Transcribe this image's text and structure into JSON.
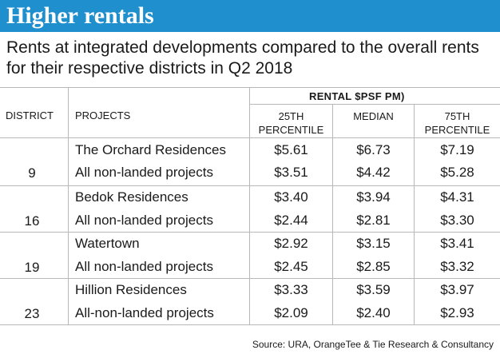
{
  "title": "Higher rentals",
  "subtitle": "Rents at integrated developments compared  to the overall rents for their respective districts in Q2 2018",
  "table": {
    "col_district": "DISTRICT",
    "col_projects": "PROJECTS",
    "rental_group": "RENTAL $PSF PM)",
    "col_25_line1": "25TH",
    "col_25_line2": "PERCENTILE",
    "col_median": "MEDIAN",
    "col_75_line1": "75TH",
    "col_75_line2": "PERCENTILE",
    "groups": [
      {
        "district": "9",
        "rows": [
          {
            "project": "The Orchard Residences",
            "p25": "$5.61",
            "median": "$6.73",
            "p75": "$7.19"
          },
          {
            "project": "All non-landed projects",
            "p25": "$3.51",
            "median": "$4.42",
            "p75": "$5.28"
          }
        ]
      },
      {
        "district": "16",
        "rows": [
          {
            "project": "Bedok Residences",
            "p25": "$3.40",
            "median": "$3.94",
            "p75": "$4.31"
          },
          {
            "project": "All non-landed projects",
            "p25": "$2.44",
            "median": "$2.81",
            "p75": "$3.30"
          }
        ]
      },
      {
        "district": "19",
        "rows": [
          {
            "project": "Watertown",
            "p25": "$2.92",
            "median": "$3.15",
            "p75": "$3.41"
          },
          {
            "project": "All non-landed projects",
            "p25": "$2.45",
            "median": "$2.85",
            "p75": "$3.32"
          }
        ]
      },
      {
        "district": "23",
        "rows": [
          {
            "project": "Hillion Residences",
            "p25": "$3.33",
            "median": "$3.59",
            "p75": "$3.97"
          },
          {
            "project": "All-non-landed projects",
            "p25": "$2.09",
            "median": "$2.40",
            "p75": "$2.93"
          }
        ]
      }
    ]
  },
  "source": "Source: URA, OrangeTee & Tie Research & Consultancy"
}
